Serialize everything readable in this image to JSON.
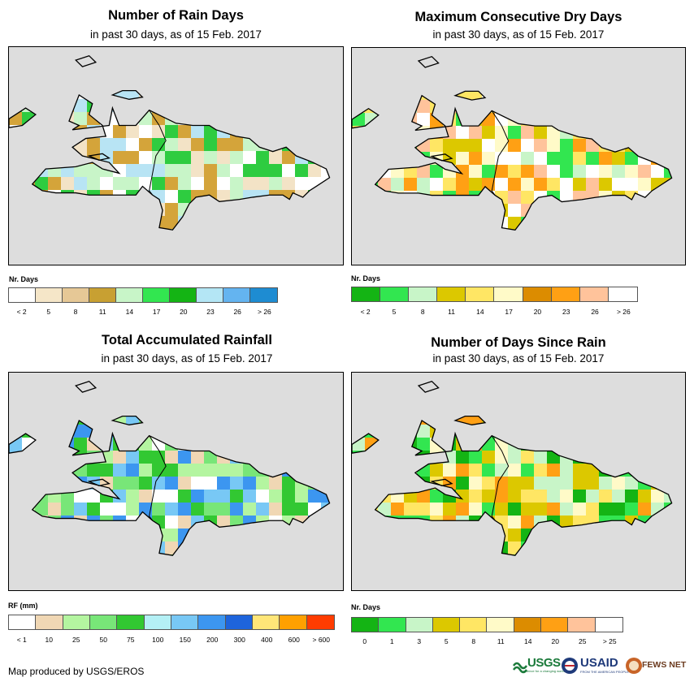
{
  "panels": [
    {
      "title": "Number of Rain Days",
      "subtitle": "in past 30 days, as of 15 Feb. 2017",
      "legend_label": "Nr. Days",
      "legend_colors": [
        "#ffffff",
        "#f5e6c8",
        "#e6c896",
        "#c8a032",
        "#c8f5c8",
        "#32e650",
        "#14b414",
        "#b4e6f5",
        "#64b4f0",
        "#1e8cd2"
      ],
      "legend_ticks": [
        "< 2",
        "5",
        "8",
        "11",
        "14",
        "17",
        "20",
        "23",
        "26",
        "> 26"
      ],
      "palette": [
        "#ffffff",
        "#f3e3c6",
        "#d4a43a",
        "#2ecc40",
        "#b8e4f4",
        "#c8f5c8"
      ]
    },
    {
      "title": "Maximum Consecutive Dry Days",
      "subtitle": "in past 30 days, as of 15 Feb. 2017",
      "legend_label": "Nr. Days",
      "legend_colors": [
        "#14b414",
        "#32e650",
        "#c8f5c8",
        "#dcc800",
        "#ffe664",
        "#fffac8",
        "#dc8c00",
        "#ffa014",
        "#ffc39b",
        "#ffffff"
      ],
      "legend_ticks": [
        "< 2",
        "5",
        "8",
        "11",
        "14",
        "17",
        "20",
        "23",
        "26",
        "> 26"
      ],
      "palette": [
        "#fffac8",
        "#ffe664",
        "#ffa014",
        "#ffc39b",
        "#dcc800",
        "#c8f5c8",
        "#32e650",
        "#ffffff"
      ]
    },
    {
      "title": "Total Accumulated Rainfall",
      "subtitle": "in past 30 days, as of 15 Feb. 2017",
      "legend_label": "RF (mm)",
      "legend_colors": [
        "#ffffff",
        "#f0d7b4",
        "#b4f5a0",
        "#78e678",
        "#32c832",
        "#b4f0f5",
        "#78c8f5",
        "#3c96f0",
        "#1e64dc",
        "#ffe678",
        "#ffa000",
        "#ff3c00"
      ],
      "legend_ticks": [
        "< 1",
        "10",
        "25",
        "50",
        "75",
        "100",
        "150",
        "200",
        "300",
        "400",
        "600",
        "> 600"
      ],
      "palette": [
        "#b4f5a0",
        "#78e678",
        "#32c832",
        "#ffffff",
        "#f0d7b4",
        "#3c96f0",
        "#78c8f5"
      ]
    },
    {
      "title": "Number of Days Since Rain",
      "subtitle": "in past 30 days, as of 15 Feb. 2017",
      "legend_label": "Nr. Days",
      "legend_colors": [
        "#14b414",
        "#32e650",
        "#c8f5c8",
        "#dcc800",
        "#ffe664",
        "#fffac8",
        "#dc8c00",
        "#ffa014",
        "#ffc39b",
        "#ffffff"
      ],
      "legend_ticks": [
        "0",
        "1",
        "3",
        "5",
        "8",
        "11",
        "14",
        "20",
        "25",
        "> 25"
      ],
      "palette": [
        "#14b414",
        "#c8f5c8",
        "#ffe664",
        "#ffa014",
        "#dcc800",
        "#fffac8",
        "#32e650"
      ]
    }
  ],
  "footer": {
    "credit": "Map produced by USGS/EROS"
  },
  "logos": {
    "usgs": "USGS",
    "usgs_tagline": "science for a changing world",
    "usaid": "USAID",
    "usaid_tagline": "FROM THE AMERICAN PEOPLE",
    "fewsnet": "FEWS NET"
  }
}
